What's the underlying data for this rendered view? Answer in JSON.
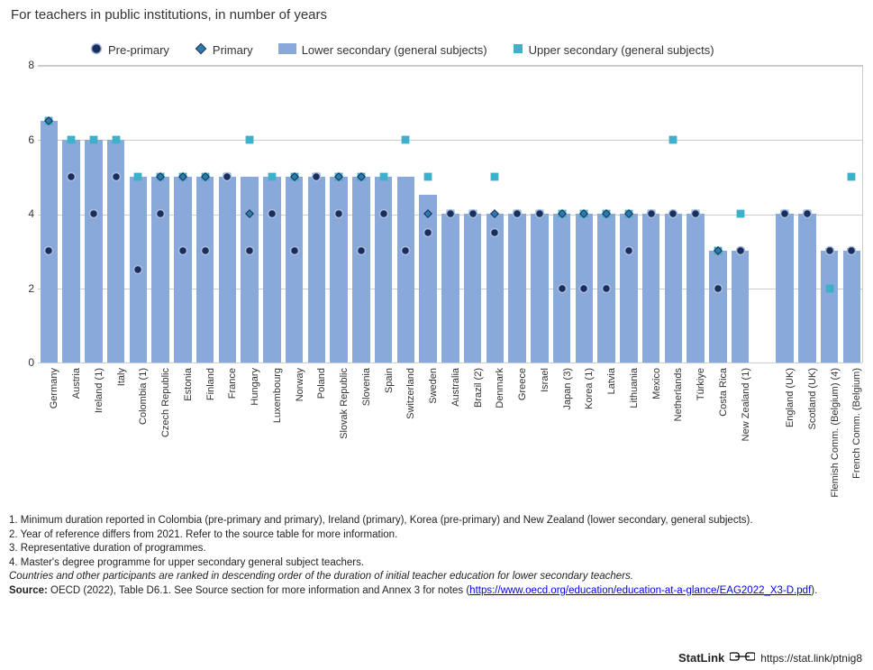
{
  "title": "For teachers in public institutions, in number of years",
  "legend": {
    "preprimary": "Pre-primary",
    "primary": "Primary",
    "lower": "Lower secondary (general subjects)",
    "upper": "Upper secondary (general subjects)"
  },
  "chart": {
    "type": "bar",
    "ylim": [
      0,
      8
    ],
    "ytick_step": 2,
    "y_axis_fontsize": 12,
    "x_axis_fontsize": 11,
    "background_color": "#ffffff",
    "grid_color": "#cccccc",
    "bar_color": "#8aa9db",
    "circle_fill": "#1b2d5a",
    "circle_stroke": "#a8bde0",
    "diamond_fill": "#2e7aa8",
    "diamond_stroke": "#1b2d5a",
    "square_fill": "#3eb0c9",
    "bar_width_ratio": 0.78,
    "marker_size": 11,
    "countries": [
      {
        "name": "Germany",
        "bar": 6.5,
        "pre": 3,
        "pri": 6.5,
        "upp": 6.5
      },
      {
        "name": "Austria",
        "bar": 6,
        "pre": 5,
        "pri": 5,
        "upp": 6
      },
      {
        "name": "Ireland (1)",
        "bar": 6,
        "pre": 4,
        "pri": 4,
        "upp": 6
      },
      {
        "name": "Italy",
        "bar": 6,
        "pre": 5,
        "pri": 5,
        "upp": 6
      },
      {
        "name": "Colombia (1)",
        "bar": 5,
        "pre": 2.5,
        "pri": 2.5,
        "upp": 5
      },
      {
        "name": "Czech Republic",
        "bar": 5,
        "pre": 4,
        "pri": 5,
        "upp": 5
      },
      {
        "name": "Estonia",
        "bar": 5,
        "pre": 3,
        "pri": 5,
        "upp": 5
      },
      {
        "name": "Finland",
        "bar": 5,
        "pre": 3,
        "pri": 5,
        "upp": 5
      },
      {
        "name": "France",
        "bar": 5,
        "pre": 5,
        "pri": 5,
        "upp": 5
      },
      {
        "name": "Hungary",
        "bar": 5,
        "pre": 3,
        "pri": 4,
        "upp": 6
      },
      {
        "name": "Luxembourg",
        "bar": 5,
        "pre": 4,
        "pri": 4,
        "upp": 5
      },
      {
        "name": "Norway",
        "bar": 5,
        "pre": 3,
        "pri": 5,
        "upp": 5
      },
      {
        "name": "Poland",
        "bar": 5,
        "pre": 5,
        "pri": 5,
        "upp": 5
      },
      {
        "name": "Slovak Republic",
        "bar": 5,
        "pre": 4,
        "pri": 5,
        "upp": 5
      },
      {
        "name": "Slovenia",
        "bar": 5,
        "pre": 3,
        "pri": 5,
        "upp": 5
      },
      {
        "name": "Spain",
        "bar": 5,
        "pre": 4,
        "pri": 4,
        "upp": 5
      },
      {
        "name": "Switzerland",
        "bar": 5,
        "pre": 3,
        "pri": 3,
        "upp": 6
      },
      {
        "name": "Sweden",
        "bar": 4.5,
        "pre": 3.5,
        "pri": 4,
        "upp": 5
      },
      {
        "name": "Australia",
        "bar": 4,
        "pre": 4,
        "pri": 4,
        "upp": 4
      },
      {
        "name": "Brazil (2)",
        "bar": 4,
        "pre": 4,
        "pri": 4,
        "upp": 4
      },
      {
        "name": "Denmark",
        "bar": 4,
        "pre": 3.5,
        "pri": 4,
        "upp": 5
      },
      {
        "name": "Greece",
        "bar": 4,
        "pre": 4,
        "pri": 4,
        "upp": 4
      },
      {
        "name": "Israel",
        "bar": 4,
        "pre": 4,
        "pri": 4,
        "upp": 4
      },
      {
        "name": "Japan (3)",
        "bar": 4,
        "pre": 2,
        "pri": 4,
        "upp": 4
      },
      {
        "name": "Korea (1)",
        "bar": 4,
        "pre": 2,
        "pri": 4,
        "upp": 4
      },
      {
        "name": "Latvia",
        "bar": 4,
        "pre": 2,
        "pri": 4,
        "upp": 4
      },
      {
        "name": "Lithuania",
        "bar": 4,
        "pre": 3,
        "pri": 4,
        "upp": 4
      },
      {
        "name": "Mexico",
        "bar": 4,
        "pre": 4,
        "pri": 4,
        "upp": 4
      },
      {
        "name": "Netherlands",
        "bar": 4,
        "pre": 4,
        "pri": 4,
        "upp": 6
      },
      {
        "name": "Türkiye",
        "bar": 4,
        "pre": 4,
        "pri": 4,
        "upp": 4
      },
      {
        "name": "Costa Rica",
        "bar": 3,
        "pre": 2,
        "pri": 3,
        "upp": 3
      },
      {
        "name": "New Zealand (1)",
        "bar": 3,
        "pre": 3,
        "pri": 3,
        "upp": 4
      },
      {
        "name": "",
        "gap": true
      },
      {
        "name": "England (UK)",
        "bar": 4,
        "pre": 4,
        "pri": 4,
        "upp": 4
      },
      {
        "name": "Scotland (UK)",
        "bar": 4,
        "pre": 4,
        "pri": 4,
        "upp": 4
      },
      {
        "name": "Flemish Comm. (Belgium) (4)",
        "bar": 3,
        "pre": 3,
        "pri": 3,
        "upp": 2
      },
      {
        "name": "French Comm. (Belgium)",
        "bar": 3,
        "pre": 3,
        "pri": 3,
        "upp": 5
      }
    ]
  },
  "notes": {
    "n1": "1. Minimum duration reported in Colombia (pre-primary and primary), Ireland (primary), Korea (pre-primary) and New Zealand (lower secondary, general subjects).",
    "n2": "2. Year of reference differs from 2021. Refer to the source table for more information.",
    "n3": "3. Representative duration of programmes.",
    "n4": "4. Master's degree programme for upper secondary general subject teachers.",
    "ranking": "Countries and other participants are ranked in descending order of the duration of initial teacher education for lower secondary teachers.",
    "source_prefix": "Source: ",
    "source_body": "OECD (2022), Table D6.1. See Source section for more information and Annex 3 for notes (",
    "source_link_text": "https://www.oecd.org/education/education-at-a-glance/EAG2022_X3-D.pdf",
    "source_suffix": ")."
  },
  "statlink": {
    "brand": "StatLink",
    "url": "https://stat.link/ptnig8"
  }
}
